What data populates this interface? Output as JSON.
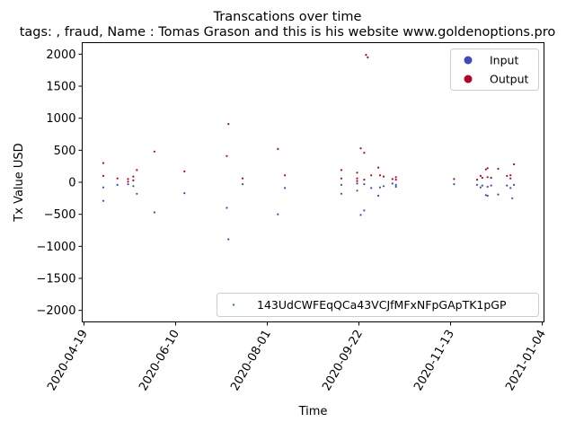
{
  "chart_data": {
    "type": "scatter",
    "title": "Transcations over time",
    "subtitle": "tags: , fraud, Name : Tomas Grason and this is his website www.goldenoptions.pro",
    "xlabel": "Time",
    "ylabel": "Tx Value USD",
    "xlim": [
      "2020-04-18",
      "2021-01-05"
    ],
    "ylim": [
      -2180,
      2180
    ],
    "x_ticks": [
      "2020-04-19",
      "2020-06-10",
      "2020-08-01",
      "2020-09-22",
      "2020-11-13",
      "2021-01-04"
    ],
    "y_ticks": [
      -2000,
      -1500,
      -1000,
      -500,
      0,
      500,
      1000,
      1500,
      2000
    ],
    "grid": false,
    "legends": [
      {
        "placement": "upper-right",
        "entries": [
          {
            "label": "Input",
            "color": "#3b4cc0",
            "marker": "circle"
          },
          {
            "label": "Output",
            "color": "#b40426",
            "marker": "circle"
          }
        ]
      },
      {
        "placement": "lower-right",
        "entries": [
          {
            "label": "143UdCWFEqQCa43VCJfMFxNFpGApTK1pGP",
            "color": "#2e8b8b",
            "marker": "dot"
          }
        ]
      }
    ],
    "series": [
      {
        "name": "Input",
        "color": "#3b4cc0",
        "points": [
          [
            "2020-04-30",
            -80
          ],
          [
            "2020-04-30",
            -290
          ],
          [
            "2020-05-08",
            -40
          ],
          [
            "2020-05-14",
            -30
          ],
          [
            "2020-05-17",
            -60
          ],
          [
            "2020-05-19",
            -180
          ],
          [
            "2020-05-29",
            -470
          ],
          [
            "2020-06-15",
            -170
          ],
          [
            "2020-07-09",
            -400
          ],
          [
            "2020-07-10",
            -890
          ],
          [
            "2020-07-18",
            -30
          ],
          [
            "2020-08-07",
            -500
          ],
          [
            "2020-08-11",
            -90
          ],
          [
            "2020-09-12",
            -40
          ],
          [
            "2020-09-12",
            -180
          ],
          [
            "2020-09-21",
            -20
          ],
          [
            "2020-09-21",
            -130
          ],
          [
            "2020-09-23",
            -510
          ],
          [
            "2020-09-25",
            -30
          ],
          [
            "2020-09-25",
            -440
          ],
          [
            "2020-09-29",
            -90
          ],
          [
            "2020-10-03",
            -210
          ],
          [
            "2020-10-04",
            -80
          ],
          [
            "2020-10-06",
            -60
          ],
          [
            "2020-10-11",
            -20
          ],
          [
            "2020-10-13",
            -40
          ],
          [
            "2020-10-13",
            -70
          ],
          [
            "2020-11-15",
            -30
          ],
          [
            "2020-11-28",
            -40
          ],
          [
            "2020-11-30",
            -80
          ],
          [
            "2020-12-01",
            -50
          ],
          [
            "2020-12-03",
            -200
          ],
          [
            "2020-12-04",
            -70
          ],
          [
            "2020-12-04",
            -210
          ],
          [
            "2020-12-06",
            -50
          ],
          [
            "2020-12-10",
            -190
          ],
          [
            "2020-12-15",
            -50
          ],
          [
            "2020-12-17",
            -90
          ],
          [
            "2020-12-18",
            -250
          ],
          [
            "2020-12-19",
            -40
          ]
        ]
      },
      {
        "name": "Output",
        "color": "#b40426",
        "points": [
          [
            "2020-04-30",
            300
          ],
          [
            "2020-04-30",
            100
          ],
          [
            "2020-05-08",
            60
          ],
          [
            "2020-05-14",
            50
          ],
          [
            "2020-05-14",
            10
          ],
          [
            "2020-05-17",
            90
          ],
          [
            "2020-05-17",
            30
          ],
          [
            "2020-05-19",
            190
          ],
          [
            "2020-05-29",
            480
          ],
          [
            "2020-06-15",
            170
          ],
          [
            "2020-07-09",
            410
          ],
          [
            "2020-07-10",
            910
          ],
          [
            "2020-07-18",
            60
          ],
          [
            "2020-08-07",
            520
          ],
          [
            "2020-08-11",
            110
          ],
          [
            "2020-09-12",
            190
          ],
          [
            "2020-09-12",
            60
          ],
          [
            "2020-09-21",
            150
          ],
          [
            "2020-09-21",
            60
          ],
          [
            "2020-09-21",
            20
          ],
          [
            "2020-09-23",
            530
          ],
          [
            "2020-09-25",
            460
          ],
          [
            "2020-09-25",
            40
          ],
          [
            "2020-09-26",
            1990
          ],
          [
            "2020-09-27",
            1950
          ],
          [
            "2020-09-29",
            110
          ],
          [
            "2020-10-03",
            230
          ],
          [
            "2020-10-04",
            110
          ],
          [
            "2020-10-06",
            90
          ],
          [
            "2020-10-11",
            50
          ],
          [
            "2020-10-13",
            80
          ],
          [
            "2020-10-13",
            40
          ],
          [
            "2020-11-15",
            50
          ],
          [
            "2020-11-28",
            40
          ],
          [
            "2020-11-30",
            100
          ],
          [
            "2020-12-01",
            70
          ],
          [
            "2020-12-03",
            200
          ],
          [
            "2020-12-04",
            220
          ],
          [
            "2020-12-04",
            80
          ],
          [
            "2020-12-06",
            70
          ],
          [
            "2020-12-10",
            210
          ],
          [
            "2020-12-15",
            100
          ],
          [
            "2020-12-17",
            110
          ],
          [
            "2020-12-17",
            60
          ],
          [
            "2020-12-19",
            280
          ]
        ]
      }
    ]
  }
}
